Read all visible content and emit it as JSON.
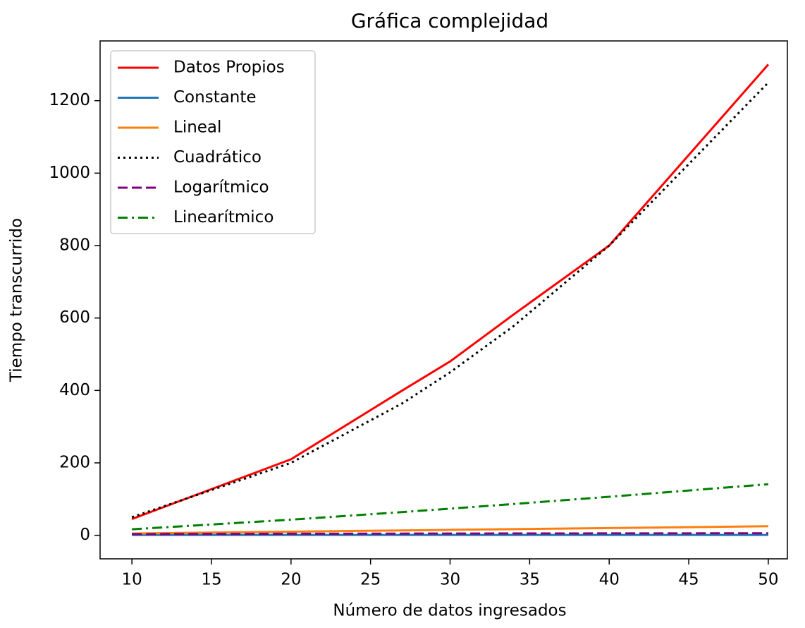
{
  "chart_data": {
    "type": "line",
    "title": "Gráfica complejidad",
    "x_label": "Número de datos ingresados",
    "y_label": "Tiempo transcurrido",
    "x": [
      10,
      20,
      27,
      30,
      34,
      40,
      50
    ],
    "series": [
      {
        "name": "Datos Propios",
        "color": "#ff0000",
        "linestyle": "solid",
        "values": [
          45,
          210,
          400,
          480,
          610,
          800,
          1300
        ]
      },
      {
        "name": "Constante",
        "color": "#1f77b4",
        "linestyle": "solid",
        "values": [
          1,
          1,
          1,
          1,
          1,
          1,
          1
        ]
      },
      {
        "name": "Lineal",
        "color": "#ff7f0e",
        "linestyle": "solid",
        "values": [
          5,
          10,
          13.5,
          15,
          17,
          20,
          25
        ]
      },
      {
        "name": "Cuadrático",
        "color": "#000000",
        "linestyle": "dotted",
        "values": [
          50,
          200,
          364.5,
          450,
          578,
          800,
          1250
        ]
      },
      {
        "name": "Logarítmico",
        "color": "#800080",
        "linestyle": "dashed",
        "values": [
          3.32,
          4.32,
          4.75,
          4.91,
          5.09,
          5.32,
          5.64
        ]
      },
      {
        "name": "Linearítmico",
        "color": "#008000",
        "linestyle": "dashdot",
        "values": [
          16.6,
          43.2,
          64.2,
          73.6,
          86.5,
          106.4,
          141.1
        ]
      }
    ],
    "xlim": [
      8,
      51.2
    ],
    "ylim": [
      -65,
      1365
    ],
    "xticks": [
      10,
      15,
      20,
      25,
      30,
      35,
      40,
      45,
      50
    ],
    "yticks": [
      0,
      200,
      400,
      600,
      800,
      1000,
      1200
    ],
    "legend": "upper-left"
  }
}
